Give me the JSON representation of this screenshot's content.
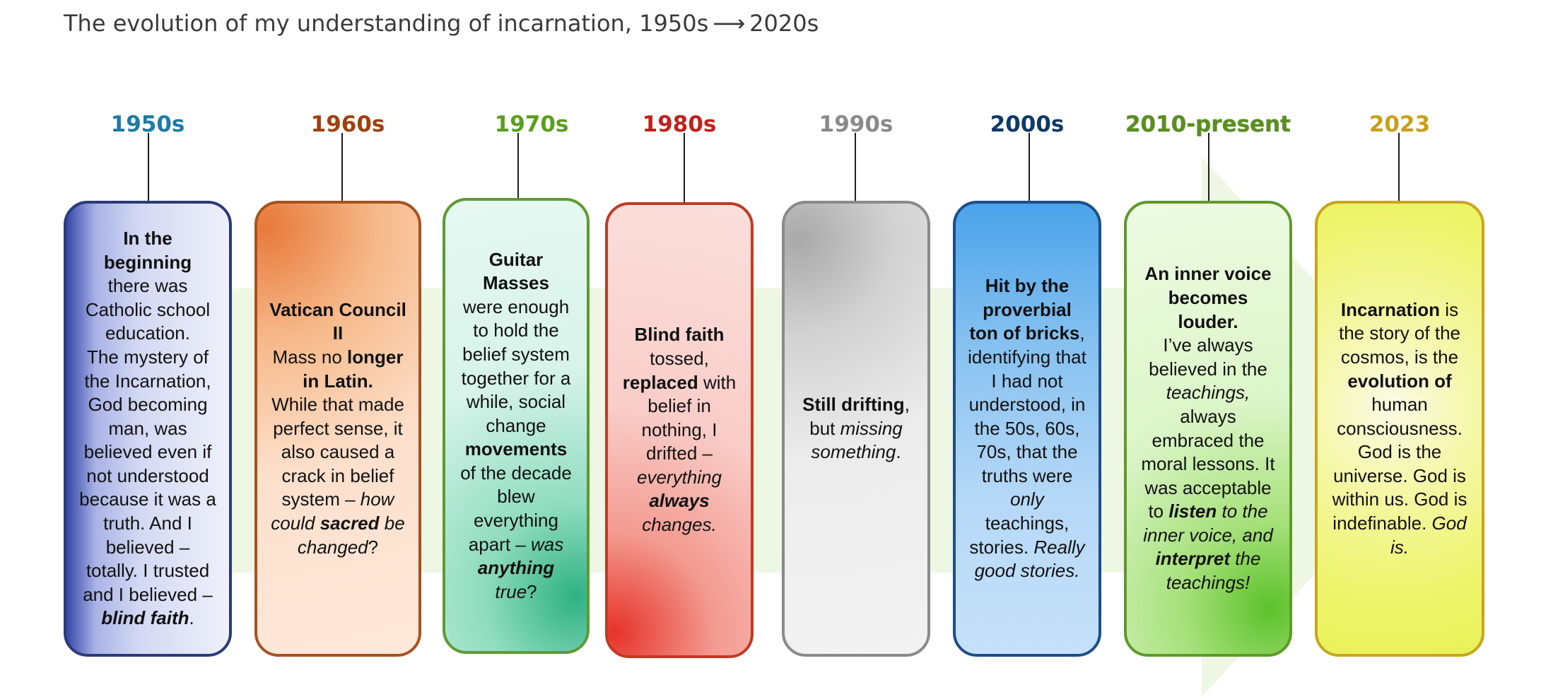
{
  "title": {
    "text": "The evolution of my understanding of incarnation, 1950s",
    "arrow": "⟶",
    "end": "2020s"
  },
  "colors": {
    "e1950": "#1d7ba6",
    "e1960": "#a0400e",
    "e1970": "#5a9e1e",
    "e1980": "#c0221b",
    "e1990": "#8a8a8a",
    "e2000": "#0d3a66",
    "e2010": "#5a8f1f",
    "e2023": "#c7a11a"
  },
  "eras": [
    {
      "label": "1950s",
      "text": [
        [
          {
            "t": "In the beginning",
            "b": true
          }
        ],
        [
          {
            "t": "there was Catholic school "
          },
          {
            "t": "education.",
            "b": false
          }
        ],
        [
          {
            "t": "The mystery of the Incarnation, God becoming man, was believed even if not understood because it was a truth. And I believed – totally. I trusted and I believed – "
          },
          {
            "t": "blind faith",
            "b": true,
            "i": true
          },
          {
            "t": "."
          }
        ]
      ]
    },
    {
      "label": "1960s",
      "text": [
        [
          {
            "t": "Vatican Council II",
            "b": true
          }
        ],
        [
          {
            "t": "Mass no "
          },
          {
            "t": "longer in Latin.",
            "b": true
          }
        ],
        [
          {
            "t": "While that made perfect sense, it also caused a crack in  belief system – "
          },
          {
            "t": "how could ",
            "i": true
          },
          {
            "t": "sacred",
            "b": true,
            "i": true
          },
          {
            "t": " be changed",
            "i": true
          },
          {
            "t": "?"
          }
        ]
      ]
    },
    {
      "label": "1970s",
      "text": [
        [
          {
            "t": "Guitar Masses",
            "b": true
          }
        ],
        [
          {
            "t": "were enough to hold the belief system together for a while, social change "
          },
          {
            "t": "movements",
            "b": true
          },
          {
            "t": " of the decade blew everything apart – "
          },
          {
            "t": "was ",
            "i": true
          },
          {
            "t": "anything",
            "b": true,
            "i": true
          },
          {
            "t": " true",
            "i": true
          },
          {
            "t": "?"
          }
        ]
      ]
    },
    {
      "label": "1980s",
      "text": [
        [
          {
            "t": "Blind faith",
            "b": true
          }
        ],
        [
          {
            "t": "tossed, "
          },
          {
            "t": "replaced",
            "b": true
          },
          {
            "t": " with belief in nothing, I drifted – "
          },
          {
            "t": "everything ",
            "i": true
          },
          {
            "t": "always",
            "b": true,
            "i": true
          },
          {
            "t": " changes.",
            "i": true
          }
        ]
      ]
    },
    {
      "label": "1990s",
      "text": [
        [
          {
            "t": "Still drifting",
            "b": true
          },
          {
            "t": ", but "
          },
          {
            "t": "missing something",
            "i": true
          },
          {
            "t": "."
          }
        ]
      ]
    },
    {
      "label": "2000s",
      "text": [
        [
          {
            "t": "Hit by the proverbial ton of bricks",
            "b": true
          },
          {
            "t": ", identifying that I had not understood, in the 50s, 60s, 70s, that the truths were "
          },
          {
            "t": "only",
            "i": true
          },
          {
            "t": " "
          },
          {
            "t": "teachings,",
            "b": false
          },
          {
            "t": " stories. "
          },
          {
            "t": "Really good stories.",
            "i": true
          }
        ]
      ]
    },
    {
      "label": "2010-present",
      "text": [
        [
          {
            "t": "An inner voice becomes louder.",
            "b": true
          }
        ],
        [
          {
            "t": "I’ve always believed in the "
          },
          {
            "t": "teachings,",
            "i": true
          },
          {
            "t": " always embraced the moral lessons. It was acceptable to "
          },
          {
            "t": "listen",
            "b": true,
            "i": true
          },
          {
            "t": "  to the inner voice, and ",
            "i": true
          },
          {
            "t": "interpret",
            "b": true,
            "i": true
          },
          {
            "t": " the teachings!",
            "i": true
          }
        ]
      ]
    },
    {
      "label": "2023",
      "text": [
        [
          {
            "t": "Incarnation",
            "b": true
          },
          {
            "t": " is the story of the cosmos, is the "
          },
          {
            "t": "evolution of",
            "b": true
          },
          {
            "t": " human consciousness. God is the universe. God is within us. God is indefinable. "
          },
          {
            "t": "God is.",
            "i": true
          }
        ]
      ]
    }
  ]
}
